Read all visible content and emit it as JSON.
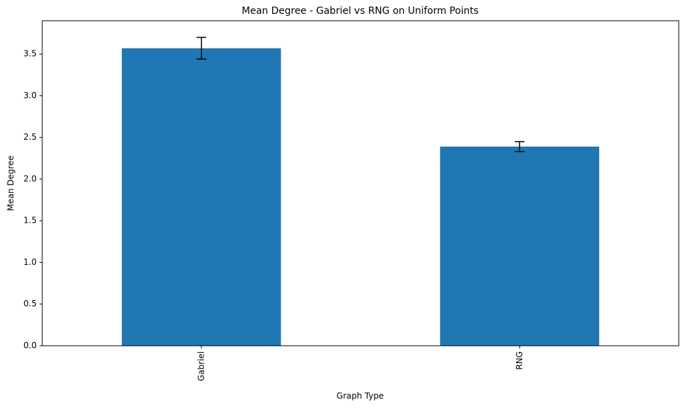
{
  "chart_data": {
    "type": "bar",
    "title": "Mean Degree - Gabriel vs RNG on Uniform Points",
    "x_label": "Graph Type",
    "y_label": "Mean Degree",
    "categories": [
      "Gabriel",
      "RNG"
    ],
    "values": [
      3.57,
      2.39
    ],
    "errors": [
      0.13,
      0.06
    ],
    "color": "#1f77b4",
    "ylim": [
      0,
      3.9
    ],
    "yticks": [
      {
        "value": 0,
        "label": "0.0"
      },
      {
        "value": 0.5,
        "label": "0.5"
      },
      {
        "value": 1,
        "label": "1.0"
      },
      {
        "value": 1.5,
        "label": "1.5"
      },
      {
        "value": 2,
        "label": "2.0"
      },
      {
        "value": 2.5,
        "label": "2.5"
      },
      {
        "value": 3,
        "label": "3.0"
      },
      {
        "value": 3.5,
        "label": "3.5"
      }
    ]
  }
}
